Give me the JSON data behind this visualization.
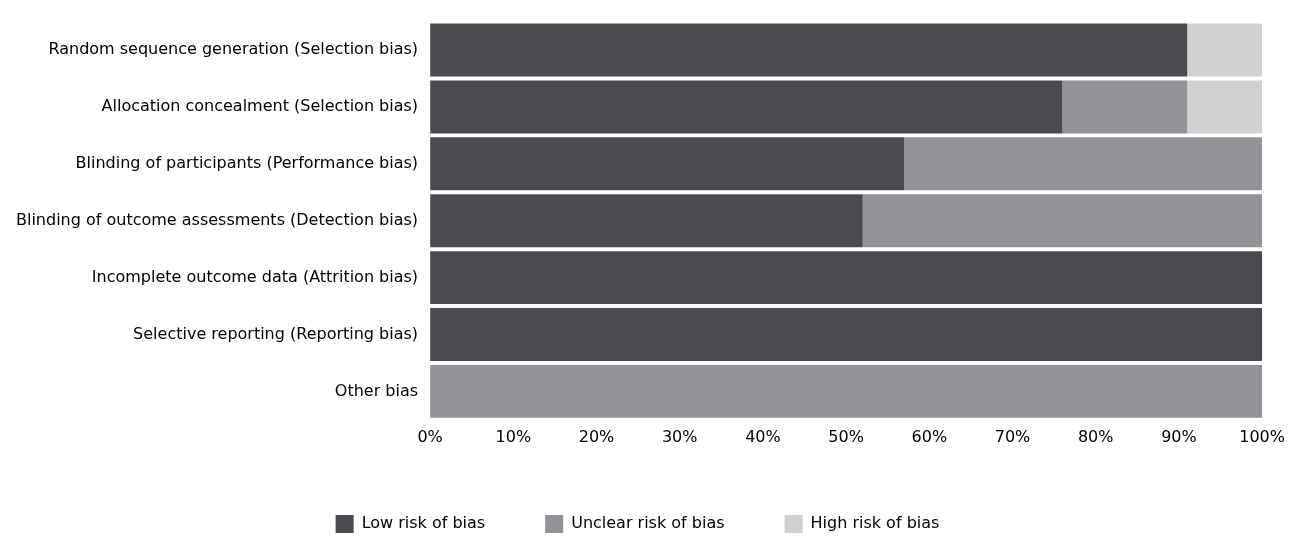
{
  "chart_data": {
    "type": "bar",
    "orientation": "horizontal",
    "stacked": true,
    "categories": [
      "Random sequence generation (Selection bias)",
      "Allocation concealment (Selection bias)",
      "Blinding of participants (Performance bias)",
      "Blinding of outcome assessments (Detection bias)",
      "Incomplete outcome data (Attrition bias)",
      "Selective reporting (Reporting bias)",
      "Other bias"
    ],
    "series": [
      {
        "name": "Low risk of bias",
        "color": "#4a4b4e",
        "values": [
          91,
          76,
          57,
          52,
          100,
          100,
          0
        ]
      },
      {
        "name": "Unclear risk of bias",
        "color": "#929397",
        "values": [
          0,
          15,
          43,
          48,
          0,
          0,
          100
        ]
      },
      {
        "name": "High risk of bias",
        "color": "#d0d1d3",
        "values": [
          9,
          9,
          0,
          0,
          0,
          0,
          0
        ]
      }
    ],
    "xlim": [
      0,
      100
    ],
    "xticks": [
      {
        "value": 0,
        "label": "0%"
      },
      {
        "value": 10,
        "label": "10%"
      },
      {
        "value": 20,
        "label": "20%"
      },
      {
        "value": 30,
        "label": "30%"
      },
      {
        "value": 40,
        "label": "40%"
      },
      {
        "value": 50,
        "label": "50%"
      },
      {
        "value": 60,
        "label": "60%"
      },
      {
        "value": 70,
        "label": "70%"
      },
      {
        "value": 80,
        "label": "80%"
      },
      {
        "value": 90,
        "label": "90%"
      },
      {
        "value": 100,
        "label": "100%"
      }
    ],
    "grid": false,
    "legend": "bottom"
  }
}
